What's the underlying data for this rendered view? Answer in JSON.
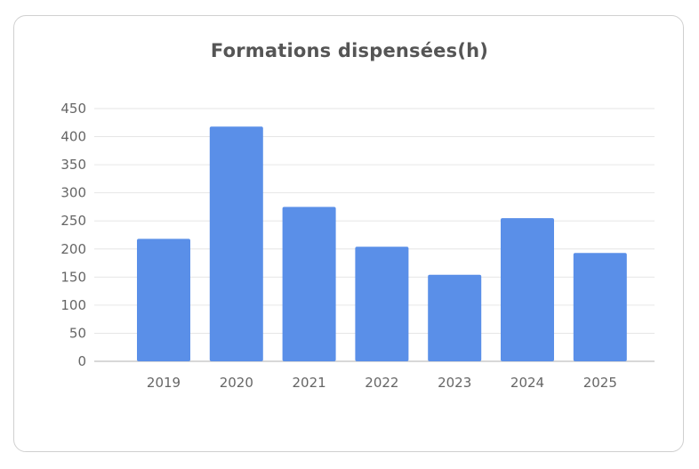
{
  "chart_data": {
    "type": "bar",
    "title": "Formations dispensées(h)",
    "xlabel": "",
    "ylabel": "",
    "categories": [
      "2019",
      "2020",
      "2021",
      "2022",
      "2023",
      "2024",
      "2025"
    ],
    "values": [
      218,
      418,
      275,
      204,
      154,
      255,
      193
    ],
    "ylim": [
      0,
      450
    ],
    "yticks": [
      "0",
      "50",
      "100",
      "150",
      "200",
      "250",
      "300",
      "350",
      "400",
      "450"
    ],
    "grid": true,
    "bar_color": "#5a8fe8",
    "grid_color": "#e6e6e6"
  }
}
